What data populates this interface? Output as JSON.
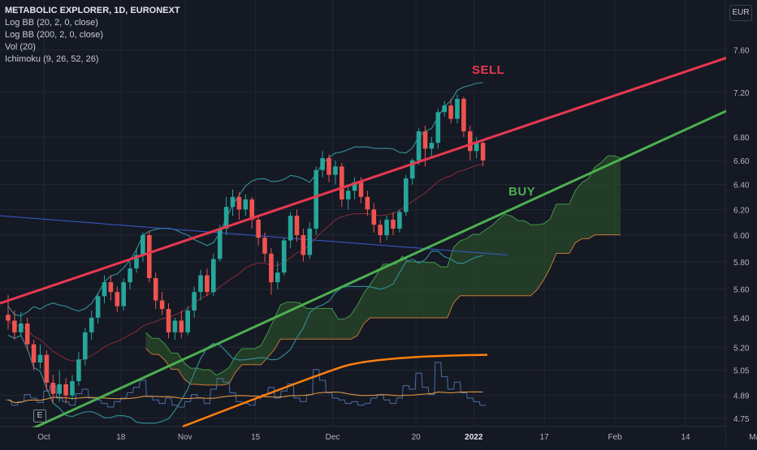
{
  "legend": {
    "title": "METABOLIC EXPLORER, 1D, EURONEXT",
    "studies": [
      "Log BB (20, 2, 0, close)",
      "Log BB (200, 2, 0, close)",
      "Vol (20)",
      "Ichimoku (9, 26, 52, 26)"
    ]
  },
  "currency": "EUR",
  "events_marker": "E",
  "annotations": {
    "sell": "SELL",
    "buy": "BUY"
  },
  "chart_data": {
    "type": "candlestick",
    "y_scale": "log",
    "ylim": [
      4.7,
      8.1
    ],
    "y_ticks": [
      7.6,
      7.2,
      6.8,
      6.6,
      6.4,
      6.2,
      6.0,
      5.8,
      5.6,
      5.4,
      5.2,
      5.05,
      4.89,
      4.75
    ],
    "x_tick_labels": [
      {
        "label": "Oct",
        "t": 0
      },
      {
        "label": "18",
        "t": 12
      },
      {
        "label": "Nov",
        "t": 22
      },
      {
        "label": "15",
        "t": 33
      },
      {
        "label": "Dec",
        "t": 45
      },
      {
        "label": "20",
        "t": 58
      },
      {
        "label": "2022",
        "t": 67
      },
      {
        "label": "17",
        "t": 78
      },
      {
        "label": "Feb",
        "t": 89
      },
      {
        "label": "14",
        "t": 100
      },
      {
        "label": "Mar",
        "t": 111
      }
    ],
    "candles": [
      [
        5.42,
        5.38,
        5.56,
        5.32
      ],
      [
        5.38,
        5.3,
        5.45,
        5.25
      ],
      [
        5.3,
        5.36,
        5.44,
        5.27
      ],
      [
        5.36,
        5.22,
        5.4,
        5.18
      ],
      [
        5.22,
        5.1,
        5.25,
        5.05
      ],
      [
        5.1,
        5.15,
        5.22,
        5.06
      ],
      [
        5.15,
        4.97,
        5.18,
        4.92
      ],
      [
        4.97,
        4.9,
        5.02,
        4.84
      ],
      [
        4.9,
        4.96,
        5.05,
        4.85
      ],
      [
        4.96,
        4.89,
        5.0,
        4.84
      ],
      [
        4.89,
        4.98,
        5.02,
        4.86
      ],
      [
        4.98,
        5.12,
        5.17,
        4.95
      ],
      [
        5.12,
        5.3,
        5.33,
        5.08
      ],
      [
        5.3,
        5.4,
        5.45,
        5.25
      ],
      [
        5.4,
        5.55,
        5.57,
        5.36
      ],
      [
        5.55,
        5.65,
        5.7,
        5.5
      ],
      [
        5.65,
        5.58,
        5.7,
        5.52
      ],
      [
        5.58,
        5.48,
        5.62,
        5.44
      ],
      [
        5.48,
        5.65,
        5.68,
        5.45
      ],
      [
        5.65,
        5.75,
        5.8,
        5.6
      ],
      [
        5.75,
        5.85,
        5.9,
        5.72
      ],
      [
        5.85,
        6.0,
        6.02,
        5.8
      ],
      [
        6.0,
        5.68,
        6.03,
        5.65
      ],
      [
        5.68,
        5.52,
        5.72,
        5.46
      ],
      [
        5.52,
        5.46,
        5.58,
        5.42
      ],
      [
        5.46,
        5.3,
        5.5,
        5.26
      ],
      [
        5.3,
        5.38,
        5.4,
        5.25
      ],
      [
        5.38,
        5.3,
        5.45,
        5.26
      ],
      [
        5.3,
        5.45,
        5.48,
        5.28
      ],
      [
        5.45,
        5.58,
        5.62,
        5.4
      ],
      [
        5.58,
        5.7,
        5.74,
        5.52
      ],
      [
        5.7,
        5.58,
        5.75,
        5.55
      ],
      [
        5.58,
        5.82,
        5.86,
        5.55
      ],
      [
        5.82,
        6.05,
        6.08,
        5.8
      ],
      [
        6.05,
        6.22,
        6.3,
        6.0
      ],
      [
        6.22,
        6.3,
        6.36,
        6.15
      ],
      [
        6.3,
        6.2,
        6.34,
        6.12
      ],
      [
        6.2,
        6.28,
        6.32,
        6.15
      ],
      [
        6.28,
        6.12,
        6.3,
        6.05
      ],
      [
        6.12,
        5.98,
        6.16,
        5.92
      ],
      [
        5.98,
        5.86,
        6.02,
        5.8
      ],
      [
        5.86,
        5.65,
        5.9,
        5.56
      ],
      [
        5.65,
        5.72,
        5.8,
        5.6
      ],
      [
        5.72,
        5.96,
        5.98,
        5.7
      ],
      [
        5.96,
        6.15,
        6.18,
        5.9
      ],
      [
        6.15,
        6.0,
        6.2,
        5.95
      ],
      [
        6.0,
        5.85,
        6.05,
        5.8
      ],
      [
        5.85,
        6.05,
        6.1,
        5.82
      ],
      [
        6.05,
        6.52,
        6.55,
        6.0
      ],
      [
        6.52,
        6.62,
        6.68,
        6.46
      ],
      [
        6.62,
        6.48,
        6.65,
        6.42
      ],
      [
        6.48,
        6.55,
        6.6,
        6.4
      ],
      [
        6.55,
        6.28,
        6.58,
        6.22
      ],
      [
        6.28,
        6.35,
        6.4,
        6.2
      ],
      [
        6.35,
        6.42,
        6.46,
        6.28
      ],
      [
        6.42,
        6.3,
        6.46,
        6.25
      ],
      [
        6.3,
        6.2,
        6.35,
        6.15
      ],
      [
        6.2,
        6.08,
        6.25,
        6.02
      ],
      [
        6.08,
        6.0,
        6.12,
        5.94
      ],
      [
        6.0,
        6.12,
        6.15,
        5.96
      ],
      [
        6.12,
        6.05,
        6.18,
        6.0
      ],
      [
        6.05,
        6.18,
        6.2,
        6.02
      ],
      [
        6.18,
        6.45,
        6.48,
        6.15
      ],
      [
        6.45,
        6.6,
        6.62,
        6.4
      ],
      [
        6.6,
        6.85,
        6.88,
        6.56
      ],
      [
        6.85,
        6.7,
        6.9,
        6.55
      ],
      [
        6.7,
        6.75,
        6.8,
        6.62
      ],
      [
        6.75,
        7.02,
        7.05,
        6.7
      ],
      [
        7.02,
        7.08,
        7.12,
        6.98
      ],
      [
        7.08,
        6.96,
        7.14,
        6.92
      ],
      [
        6.96,
        7.14,
        7.18,
        6.92
      ],
      [
        7.14,
        6.85,
        7.16,
        6.8
      ],
      [
        6.85,
        6.68,
        6.9,
        6.6
      ],
      [
        6.68,
        6.75,
        6.8,
        6.62
      ],
      [
        6.75,
        6.6,
        6.78,
        6.55
      ]
    ],
    "volume": [
      0.28,
      0.22,
      0.26,
      0.34,
      0.3,
      0.25,
      0.38,
      0.44,
      0.3,
      0.26,
      0.22,
      0.35,
      0.4,
      0.3,
      0.28,
      0.24,
      0.2,
      0.26,
      0.3,
      0.36,
      0.42,
      0.5,
      0.32,
      0.28,
      0.24,
      0.3,
      0.22,
      0.2,
      0.26,
      0.34,
      0.3,
      0.24,
      0.4,
      0.52,
      0.48,
      0.36,
      0.26,
      0.24,
      0.22,
      0.3,
      0.34,
      0.42,
      0.3,
      0.38,
      0.46,
      0.3,
      0.26,
      0.34,
      0.62,
      0.5,
      0.36,
      0.3,
      0.28,
      0.24,
      0.26,
      0.22,
      0.24,
      0.3,
      0.34,
      0.28,
      0.24,
      0.3,
      0.44,
      0.4,
      0.58,
      0.42,
      0.34,
      0.7,
      0.54,
      0.4,
      0.48,
      0.36,
      0.3,
      0.26,
      0.22
    ],
    "sell_line": [
      [
        0,
        5.5
      ],
      [
        1140,
        8.2
      ]
    ],
    "buy_line": [
      [
        0,
        4.6
      ],
      [
        1140,
        7.9
      ]
    ]
  },
  "colors": {
    "background": "#151924",
    "grid": "#232735",
    "axis_text": "#b2b5be",
    "up": "#26a69a",
    "down": "#ef5350",
    "sell_line": "#e8384f",
    "buy_line": "#4caf50",
    "cloud_fill": "#2e5a2a",
    "bb_line": "#2f8a8f",
    "vol_line": "#4a6fa5",
    "ma_orange": "#ff7f0e",
    "blue_line": "#3a5bd0"
  }
}
